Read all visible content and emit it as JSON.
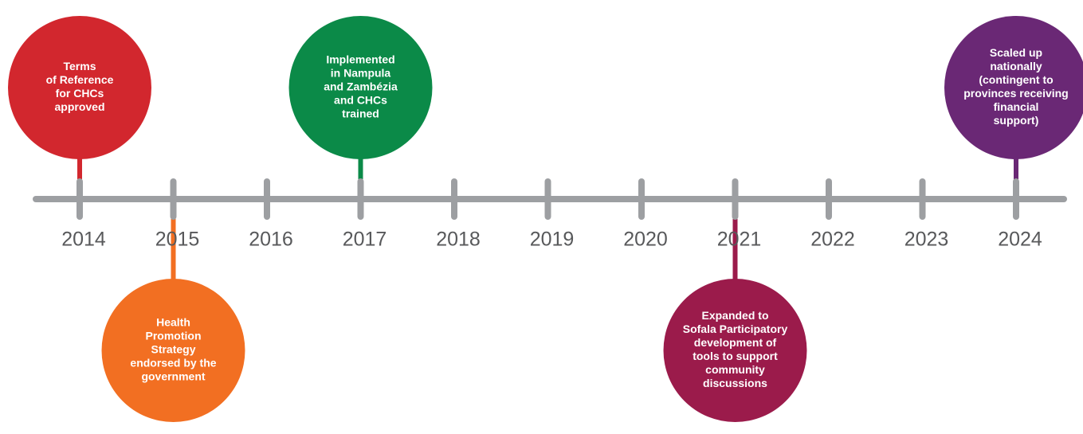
{
  "timeline": {
    "years": [
      "2014",
      "2015",
      "2016",
      "2017",
      "2018",
      "2019",
      "2020",
      "2021",
      "2022",
      "2023",
      "2024"
    ],
    "events": [
      {
        "year": 0,
        "side": "above",
        "color": "#d2272e",
        "lines": [
          "Terms",
          "of Reference",
          "for CHCs",
          "approved"
        ]
      },
      {
        "year": 1,
        "side": "below",
        "color": "#f26f22",
        "lines": [
          "Health",
          "Promotion",
          "Strategy",
          "endorsed by the",
          "government"
        ]
      },
      {
        "year": 3,
        "side": "above",
        "color": "#0b8a48",
        "lines": [
          "Implemented",
          "in Nampula",
          "and Zambézia",
          "and CHCs",
          "trained"
        ]
      },
      {
        "year": 7,
        "side": "below",
        "color": "#9b1b4b",
        "lines": [
          "Expanded to",
          "Sofala Participatory",
          "development of",
          "tools to support",
          "community",
          "discussions"
        ]
      },
      {
        "year": 10,
        "side": "above",
        "color": "#6a2875",
        "lines": [
          "Scaled up",
          "nationally",
          "(contingent to",
          "provinces receiving",
          "financial",
          "support)"
        ]
      }
    ]
  }
}
